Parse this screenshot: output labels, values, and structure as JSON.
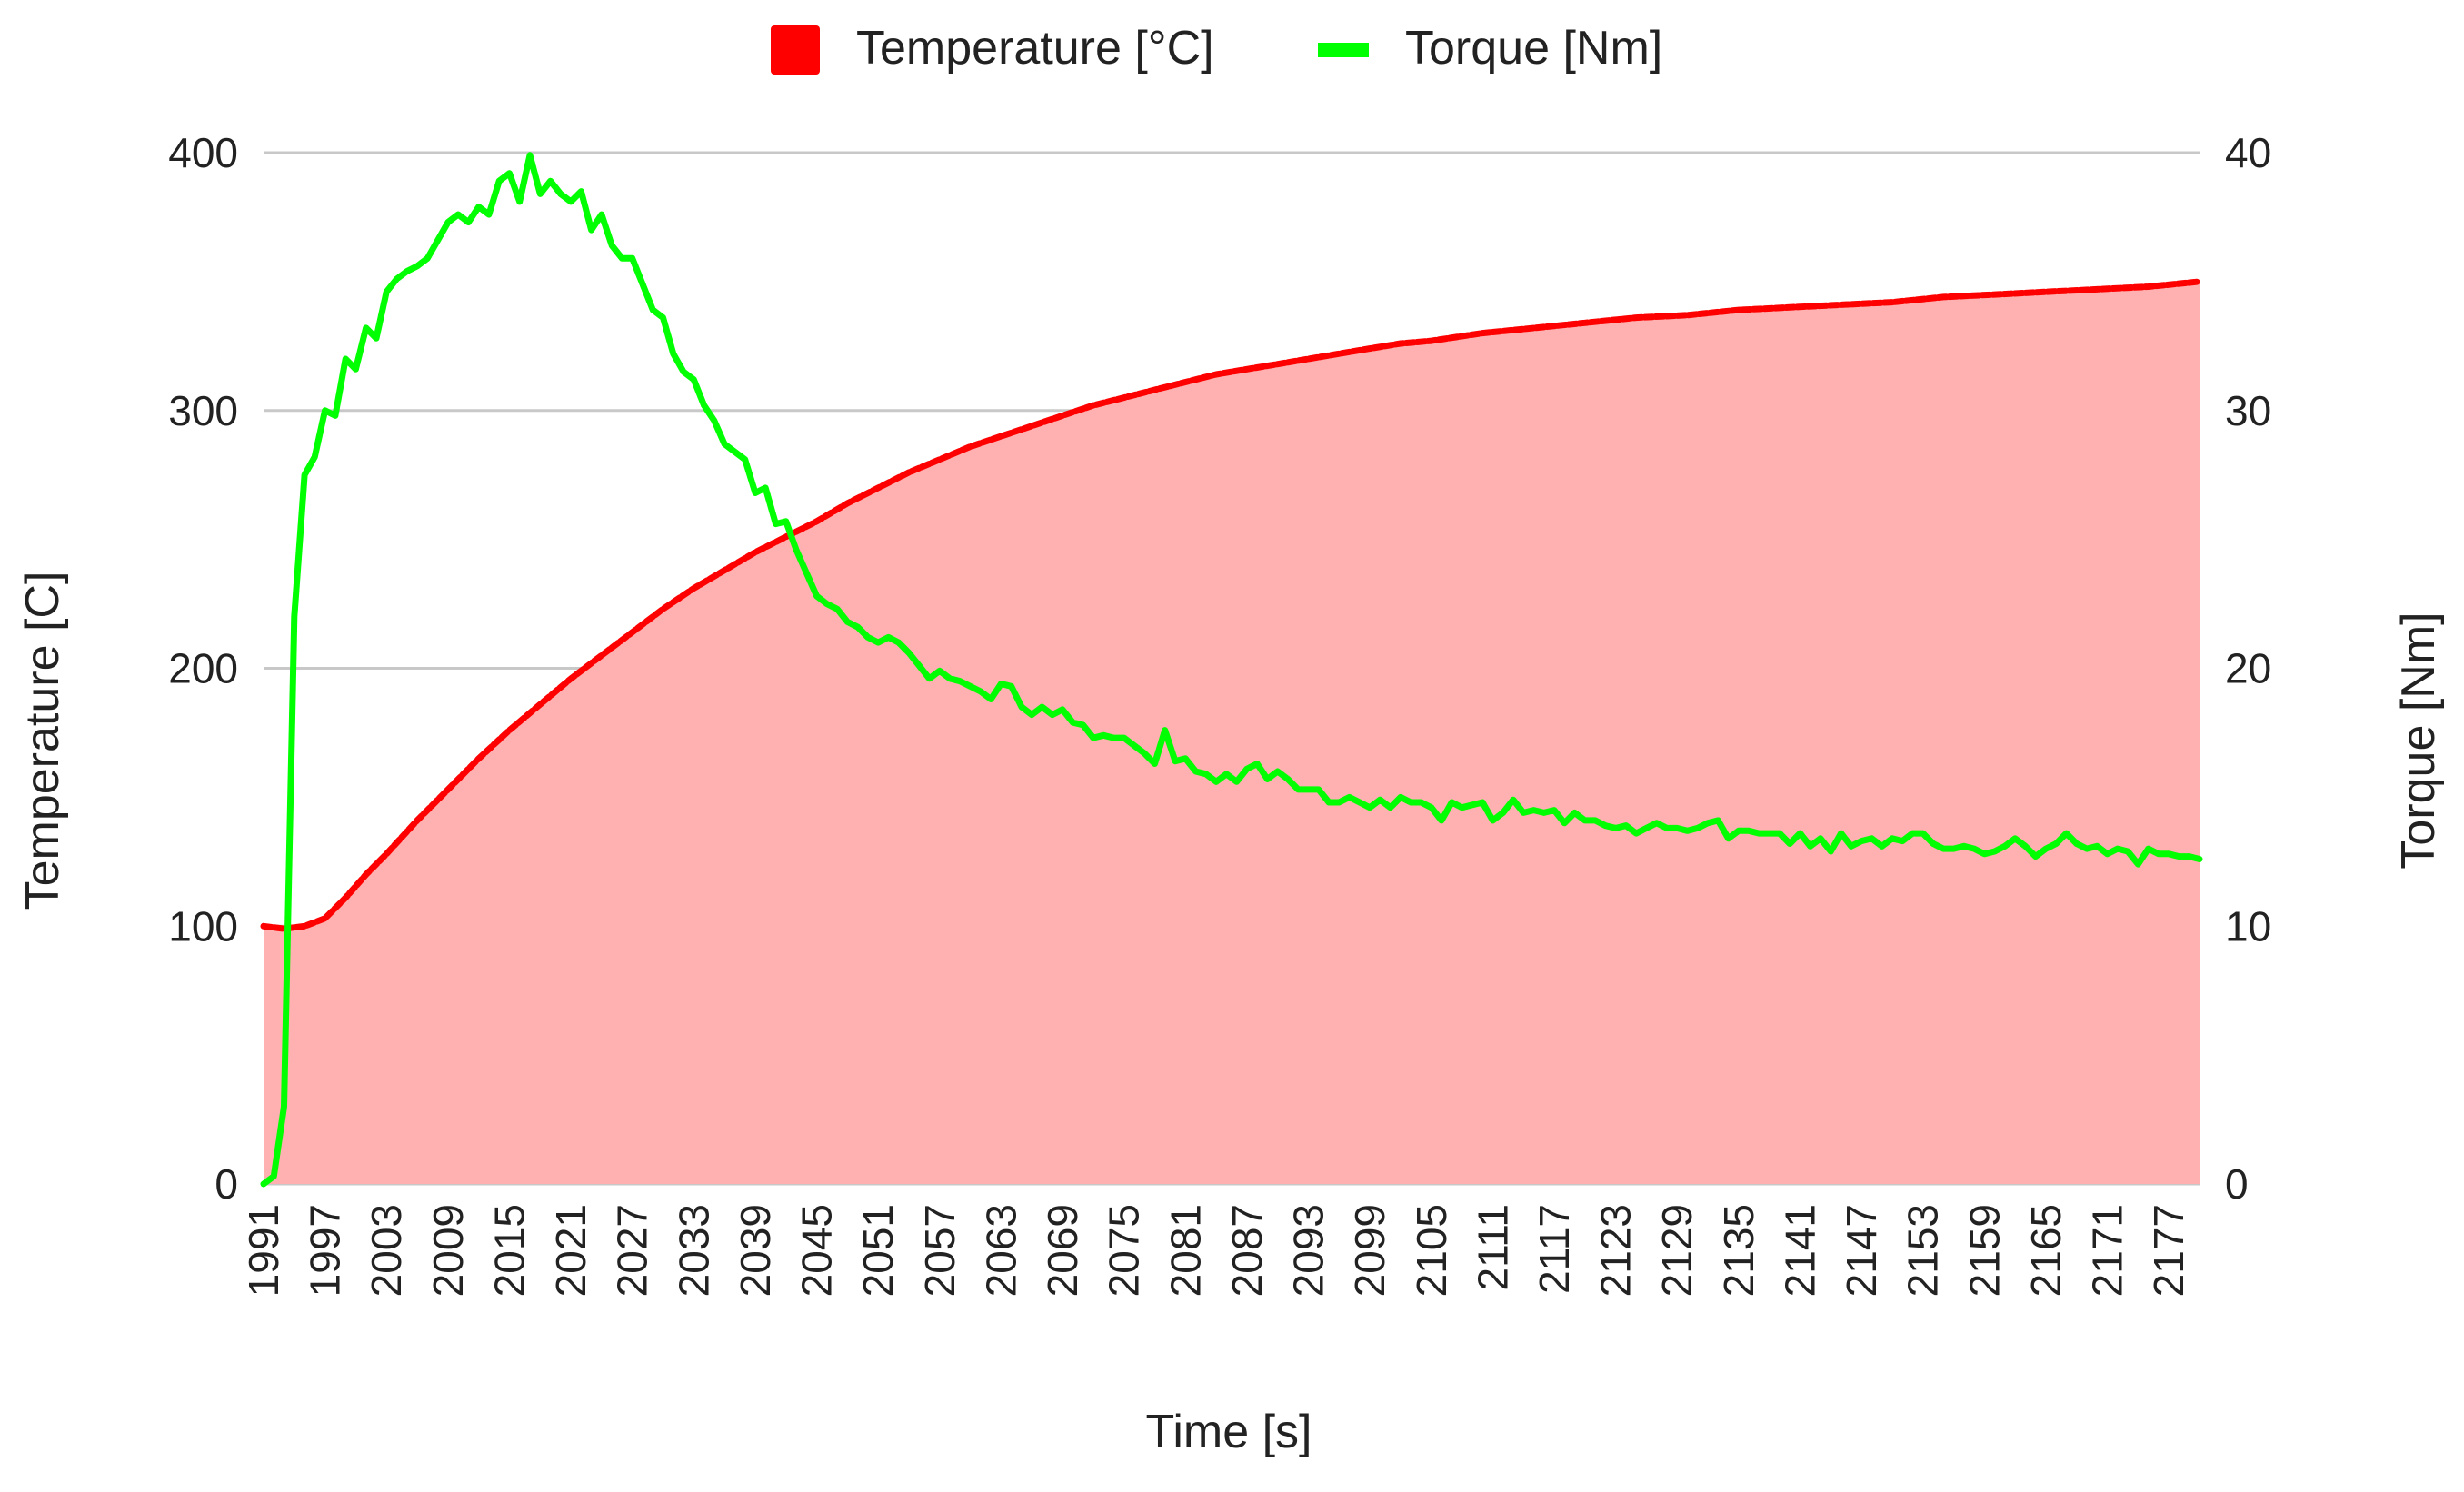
{
  "chart_data": {
    "type": "area+line",
    "title": "",
    "legend": {
      "position": "top",
      "items": [
        {
          "label": "Temperature [°C]",
          "color": "#ff0000",
          "marker": "square"
        },
        {
          "label": "Torque [Nm]",
          "color": "#00ff00",
          "marker": "line"
        }
      ]
    },
    "xlabel": "Time [s]",
    "ylabel_left": "Temperature [C]",
    "ylabel_right": "Torque [Nm]",
    "xlim": [
      1991,
      2180
    ],
    "ylim_left": [
      0,
      400
    ],
    "ylim_right": [
      0,
      40
    ],
    "yticks_left": [
      "0",
      "100",
      "200",
      "300",
      "400"
    ],
    "yticks_right": [
      "0",
      "10",
      "20",
      "30",
      "40"
    ],
    "xticks": [
      "1991",
      "1997",
      "2003",
      "2009",
      "2015",
      "2021",
      "2027",
      "2033",
      "2039",
      "2045",
      "2051",
      "2057",
      "2063",
      "2069",
      "2075",
      "2081",
      "2087",
      "2093",
      "2099",
      "2105",
      "2111",
      "2117",
      "2123",
      "2129",
      "2135",
      "2141",
      "2147",
      "2153",
      "2159",
      "2165",
      "2171",
      "2177"
    ],
    "series": [
      {
        "name": "Temperature [°C]",
        "axis": "left",
        "style": "area",
        "line_color": "#ff0000",
        "fill_color": "#ffb0b0",
        "x": [
          1991,
          1993,
          1995,
          1997,
          1999,
          2001,
          2003,
          2006,
          2009,
          2012,
          2015,
          2018,
          2021,
          2024,
          2027,
          2030,
          2033,
          2036,
          2039,
          2042,
          2045,
          2048,
          2051,
          2054,
          2057,
          2060,
          2063,
          2066,
          2069,
          2072,
          2075,
          2078,
          2081,
          2084,
          2087,
          2090,
          2093,
          2096,
          2099,
          2102,
          2105,
          2110,
          2115,
          2120,
          2125,
          2130,
          2135,
          2140,
          2145,
          2150,
          2155,
          2160,
          2165,
          2170,
          2175,
          2180
        ],
        "values": [
          100,
          99,
          100,
          103,
          111,
          120,
          128,
          141,
          153,
          165,
          176,
          186,
          196,
          205,
          214,
          223,
          231,
          238,
          245,
          251,
          257,
          264,
          270,
          276,
          281,
          286,
          290,
          294,
          298,
          302,
          305,
          308,
          311,
          314,
          316,
          318,
          320,
          322,
          324,
          326,
          327,
          330,
          332,
          334,
          336,
          337,
          339,
          340,
          341,
          342,
          344,
          345,
          346,
          347,
          348,
          350
        ]
      },
      {
        "name": "Torque [Nm]",
        "axis": "right",
        "style": "line",
        "color": "#00ff00",
        "x": [
          1991,
          1992,
          1993,
          1994,
          1995,
          1996,
          1997,
          1998,
          1999,
          2000,
          2001,
          2002,
          2003,
          2004,
          2005,
          2006,
          2007,
          2008,
          2009,
          2010,
          2011,
          2012,
          2013,
          2014,
          2015,
          2016,
          2017,
          2018,
          2019,
          2020,
          2021,
          2022,
          2023,
          2024,
          2025,
          2026,
          2027,
          2028,
          2029,
          2030,
          2031,
          2032,
          2033,
          2034,
          2035,
          2036,
          2037,
          2038,
          2039,
          2040,
          2041,
          2042,
          2043,
          2044,
          2045,
          2046,
          2047,
          2048,
          2049,
          2050,
          2051,
          2052,
          2053,
          2054,
          2055,
          2056,
          2057,
          2058,
          2059,
          2060,
          2061,
          2062,
          2063,
          2064,
          2065,
          2066,
          2067,
          2068,
          2069,
          2070,
          2071,
          2072,
          2073,
          2074,
          2075,
          2076,
          2077,
          2078,
          2079,
          2080,
          2081,
          2082,
          2083,
          2084,
          2085,
          2086,
          2087,
          2088,
          2089,
          2090,
          2091,
          2092,
          2093,
          2094,
          2095,
          2096,
          2097,
          2098,
          2099,
          2100,
          2101,
          2102,
          2103,
          2104,
          2105,
          2106,
          2107,
          2108,
          2109,
          2110,
          2111,
          2112,
          2113,
          2114,
          2115,
          2116,
          2117,
          2118,
          2119,
          2120,
          2121,
          2122,
          2123,
          2124,
          2125,
          2126,
          2127,
          2128,
          2129,
          2130,
          2131,
          2132,
          2133,
          2134,
          2135,
          2136,
          2137,
          2138,
          2139,
          2140,
          2141,
          2142,
          2143,
          2144,
          2145,
          2146,
          2147,
          2148,
          2149,
          2150,
          2151,
          2152,
          2153,
          2154,
          2155,
          2156,
          2157,
          2158,
          2159,
          2160,
          2161,
          2162,
          2163,
          2164,
          2165,
          2166,
          2167,
          2168,
          2169,
          2170,
          2171,
          2172,
          2173,
          2174,
          2175,
          2176,
          2177,
          2178,
          2179,
          2180
        ],
        "values": [
          0,
          0.3,
          3,
          22,
          27.5,
          28.2,
          30,
          29.8,
          32,
          31.6,
          33.2,
          32.8,
          34.6,
          35.1,
          35.4,
          35.6,
          35.9,
          36.6,
          37.3,
          37.6,
          37.3,
          37.9,
          37.6,
          38.9,
          39.2,
          38.1,
          39.9,
          38.4,
          38.9,
          38.4,
          38.1,
          38.5,
          37.0,
          37.6,
          36.4,
          35.9,
          35.9,
          34.9,
          33.9,
          33.6,
          32.2,
          31.5,
          31.2,
          30.2,
          29.6,
          28.7,
          28.4,
          28.1,
          26.8,
          27.0,
          25.6,
          25.7,
          24.6,
          23.7,
          22.8,
          22.5,
          22.3,
          21.8,
          21.6,
          21.2,
          21.0,
          21.2,
          21.0,
          20.6,
          20.1,
          19.6,
          19.9,
          19.6,
          19.5,
          19.3,
          19.1,
          18.8,
          19.4,
          19.3,
          18.5,
          18.2,
          18.5,
          18.2,
          18.4,
          17.9,
          17.8,
          17.3,
          17.4,
          17.3,
          17.3,
          17.0,
          16.7,
          16.3,
          17.6,
          16.4,
          16.5,
          16.0,
          15.9,
          15.6,
          15.9,
          15.6,
          16.1,
          16.3,
          15.7,
          16.0,
          15.7,
          15.3,
          15.3,
          15.3,
          14.8,
          14.8,
          15.0,
          14.8,
          14.6,
          14.9,
          14.6,
          15.0,
          14.8,
          14.8,
          14.6,
          14.1,
          14.8,
          14.6,
          14.7,
          14.8,
          14.1,
          14.4,
          14.9,
          14.4,
          14.5,
          14.4,
          14.5,
          14.0,
          14.4,
          14.1,
          14.1,
          13.9,
          13.8,
          13.9,
          13.6,
          13.8,
          14.0,
          13.8,
          13.8,
          13.7,
          13.8,
          14.0,
          14.1,
          13.4,
          13.7,
          13.7,
          13.6,
          13.6,
          13.6,
          13.2,
          13.6,
          13.1,
          13.4,
          12.9,
          13.6,
          13.1,
          13.3,
          13.4,
          13.1,
          13.4,
          13.3,
          13.6,
          13.6,
          13.2,
          13.0,
          13.0,
          13.1,
          13.0,
          12.8,
          12.9,
          13.1,
          13.4,
          13.1,
          12.7,
          13.0,
          13.2,
          13.6,
          13.2,
          13.0,
          13.1,
          12.8,
          13.0,
          12.9,
          12.4,
          13.0,
          12.8,
          12.8,
          12.7,
          12.7,
          12.6
        ]
      }
    ]
  }
}
